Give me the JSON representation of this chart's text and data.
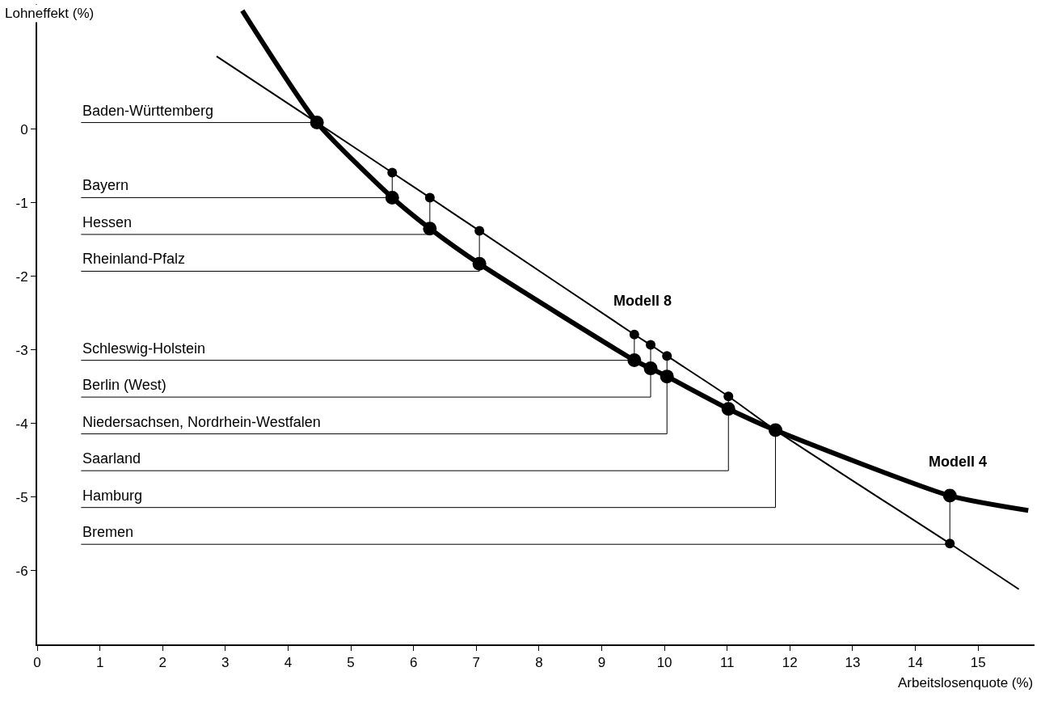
{
  "chart_data": {
    "type": "line",
    "xlabel": "Arbeitslosenquote (%)",
    "ylabel": "Lohneffekt (%)",
    "xlim": [
      0,
      15.9
    ],
    "ylim": [
      -7.0,
      1.7
    ],
    "xticks": [
      0,
      1,
      2,
      3,
      4,
      5,
      6,
      7,
      8,
      9,
      10,
      11,
      12,
      13,
      14,
      15
    ],
    "yticks": [
      0,
      -1,
      -2,
      -3,
      -4,
      -5,
      -6
    ],
    "legend": false,
    "series": [
      {
        "name": "Modell 4",
        "color": "#000000",
        "marker": "none",
        "x": [
          3.27,
          4.46,
          5.66,
          6.26,
          7.05,
          9.52,
          9.78,
          10.04,
          11.02,
          11.77,
          14.55,
          15.8
        ],
        "values": [
          1.61,
          0.09,
          -0.93,
          -1.35,
          -1.83,
          -3.14,
          -3.25,
          -3.36,
          -3.8,
          -4.09,
          -4.98,
          -5.18
        ]
      },
      {
        "name": "Modell 8",
        "color": "#000000",
        "marker": "none",
        "x": [
          2.86,
          4.46,
          5.66,
          6.26,
          7.05,
          9.52,
          9.78,
          10.04,
          11.02,
          11.77,
          14.55,
          15.65
        ],
        "values": [
          0.99,
          0.09,
          -0.59,
          -0.93,
          -1.38,
          -2.79,
          -2.93,
          -3.08,
          -3.63,
          -4.09,
          -5.63,
          -6.25
        ]
      },
      {
        "type": "scatter",
        "color": "#000000",
        "marker": "circle",
        "x": [
          4.46,
          5.66,
          6.26,
          7.05,
          9.52,
          9.78,
          10.04,
          11.02,
          11.77,
          14.55
        ],
        "values": [
          0.09,
          -0.93,
          -1.35,
          -1.83,
          -3.14,
          -3.25,
          -3.36,
          -3.8,
          -4.09,
          -4.98
        ]
      },
      {
        "type": "scatter",
        "color": "#000000",
        "marker": "circle",
        "x": [
          5.66,
          6.26,
          7.05,
          9.52,
          9.78,
          10.04,
          11.02,
          14.55
        ],
        "values": [
          -0.59,
          -0.93,
          -1.38,
          -2.79,
          -2.93,
          -3.08,
          -3.63,
          -5.63
        ]
      }
    ],
    "annotations": [
      {
        "text": "Baden-Württemberg",
        "x": 4.46,
        "y": 0.09
      },
      {
        "text": "Bayern",
        "x": 5.66,
        "y": -0.59
      },
      {
        "text": "Hessen",
        "x": 6.26,
        "y": -0.93
      },
      {
        "text": "Rheinland-Pfalz",
        "x": 7.05,
        "y": -1.38
      },
      {
        "text": "Schleswig-Holstein",
        "x": 9.52,
        "y": -2.79
      },
      {
        "text": "Berlin (West)",
        "x": 9.78,
        "y": -2.93
      },
      {
        "text": "Niedersachsen, Nordrhein-Westfalen",
        "x": 10.04,
        "y": -3.08
      },
      {
        "text": "Saarland",
        "x": 11.02,
        "y": -3.63
      },
      {
        "text": "Hamburg",
        "x": 11.77,
        "y": -4.09
      },
      {
        "text": "Bremen",
        "x": 14.55,
        "y": -4.98
      }
    ]
  }
}
